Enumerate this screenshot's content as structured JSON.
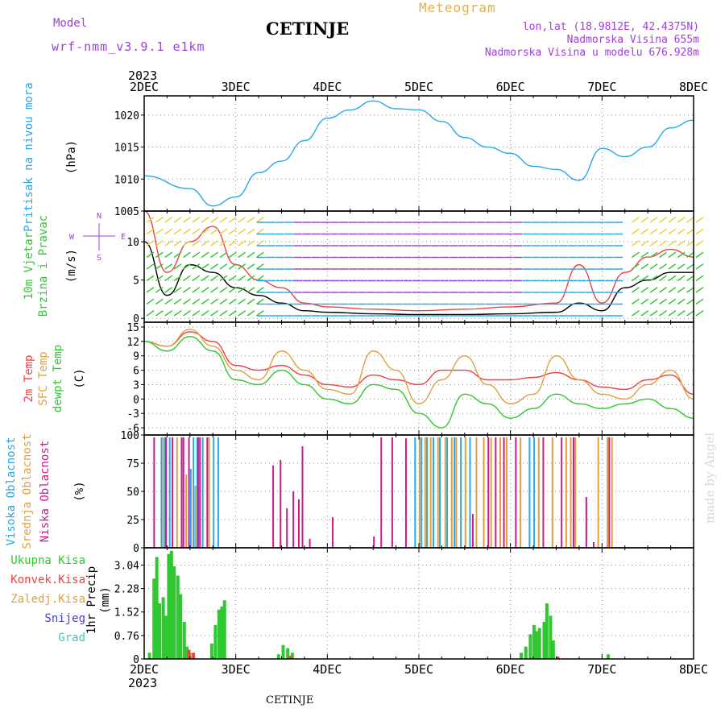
{
  "header": {
    "model_label": "Model",
    "model_name": "wrf-nmm_v3.9.1 e1km",
    "title": "CETINJE",
    "meteogram": "Meteogram",
    "lonlat": "lon,lat (18.9812E, 42.4375N)",
    "elevation": "Nadmorska Visina 655m",
    "model_elevation": "Nadmorska Visina u modelu 676.928m"
  },
  "footer": {
    "station": "CETINJE",
    "credit": "made by Angel"
  },
  "colors": {
    "purple": "#a040d8",
    "blue": "#28a8e8",
    "green": "#30c830",
    "red": "#f04040",
    "orange": "#e0a040",
    "tan": "#e0b050",
    "magenta": "#c81c8c",
    "navy": "#4040d8",
    "teal": "#40c8b8"
  },
  "chart_data": [
    {
      "type": "line",
      "panel": "pressure",
      "title_lines": [
        "Pritisak na nivou mora",
        "(hPa)"
      ],
      "x": [
        "2023-12-02 00",
        "2023-12-02 12",
        "2023-12-02 18",
        "2023-12-03 00",
        "2023-12-03 06",
        "2023-12-03 12",
        "2023-12-03 18",
        "2023-12-04 00",
        "2023-12-04 06",
        "2023-12-04 12",
        "2023-12-04 18",
        "2023-12-05 00",
        "2023-12-05 06",
        "2023-12-05 12",
        "2023-12-05 18",
        "2023-12-06 00",
        "2023-12-06 06",
        "2023-12-06 12",
        "2023-12-06 18",
        "2023-12-07 00",
        "2023-12-07 06",
        "2023-12-07 12",
        "2023-12-07 18",
        "2023-12-08 00"
      ],
      "series": [
        {
          "name": "Pritisak na nivou mora",
          "color": "#28a8e8",
          "values": [
            1010.5,
            1008.5,
            1005.8,
            1007.2,
            1011.0,
            1012.8,
            1016.0,
            1019.5,
            1020.8,
            1022.2,
            1021.0,
            1020.8,
            1019.0,
            1016.5,
            1015.0,
            1014.0,
            1012.0,
            1011.5,
            1009.8,
            1014.8,
            1013.5,
            1015.0,
            1018.0,
            1019.2
          ]
        }
      ],
      "ylim": [
        1005,
        1023
      ],
      "yticks": [
        1005,
        1010,
        1015,
        1020
      ]
    },
    {
      "type": "line",
      "panel": "wind",
      "title_lines": [
        "10m Vjetar",
        "Brzina i Pravac",
        "(m/s)"
      ],
      "compass": [
        "N",
        "E",
        "S",
        "W"
      ],
      "x": [
        "2023-12-02 00",
        "2023-12-02 06",
        "2023-12-02 12",
        "2023-12-02 18",
        "2023-12-03 00",
        "2023-12-03 06",
        "2023-12-03 12",
        "2023-12-03 18",
        "2023-12-04 00",
        "2023-12-04 12",
        "2023-12-05 00",
        "2023-12-05 12",
        "2023-12-06 00",
        "2023-12-06 12",
        "2023-12-06 18",
        "2023-12-07 00",
        "2023-12-07 06",
        "2023-12-07 12",
        "2023-12-07 18",
        "2023-12-08 00"
      ],
      "series": [
        {
          "name": "mean",
          "color": "#000000",
          "values": [
            10,
            3,
            7,
            6,
            4,
            3,
            2,
            1,
            0.8,
            0.6,
            0.5,
            0.5,
            0.6,
            0.8,
            2,
            1,
            4,
            5,
            6,
            6
          ]
        },
        {
          "name": "gust",
          "color": "#f04040",
          "values": [
            14,
            6,
            10,
            12,
            7,
            5,
            4,
            2,
            1.5,
            1.2,
            1.0,
            1.2,
            1.5,
            2,
            7,
            2,
            6,
            8,
            9,
            8
          ]
        }
      ],
      "ylim": [
        -0.5,
        14
      ],
      "yticks": [
        0,
        5,
        10
      ]
    },
    {
      "type": "line",
      "panel": "temperature",
      "title_lines": [
        "2m Temp",
        "SFC Temp",
        "dewpt Temp",
        "(C)"
      ],
      "x": [
        "2023-12-02 00",
        "2023-12-02 06",
        "2023-12-02 12",
        "2023-12-02 18",
        "2023-12-03 00",
        "2023-12-03 06",
        "2023-12-03 12",
        "2023-12-03 18",
        "2023-12-04 00",
        "2023-12-04 06",
        "2023-12-04 12",
        "2023-12-04 18",
        "2023-12-05 00",
        "2023-12-05 06",
        "2023-12-05 12",
        "2023-12-05 18",
        "2023-12-06 00",
        "2023-12-06 06",
        "2023-12-06 12",
        "2023-12-06 18",
        "2023-12-07 00",
        "2023-12-07 06",
        "2023-12-07 12",
        "2023-12-07 18",
        "2023-12-08 00"
      ],
      "series": [
        {
          "name": "2m Temp",
          "color": "#f04040",
          "values": [
            12,
            11,
            14,
            12,
            7,
            6,
            7,
            5,
            3,
            2.5,
            5,
            4,
            3,
            6,
            6,
            4,
            4,
            4.5,
            5.5,
            4,
            2.5,
            2,
            4,
            5,
            1
          ]
        },
        {
          "name": "SFC Temp",
          "color": "#e0a040",
          "values": [
            12,
            11,
            14.5,
            11,
            6,
            4,
            10,
            6,
            2,
            1,
            10,
            6,
            -1,
            4,
            9,
            3,
            -1,
            1,
            9,
            4,
            1,
            0,
            3,
            6,
            0
          ]
        },
        {
          "name": "dewpt Temp",
          "color": "#30c830",
          "values": [
            12,
            10,
            13,
            10,
            4,
            3,
            6,
            3,
            0,
            -1,
            3,
            2,
            -3,
            -6,
            1,
            -1,
            -4,
            -2,
            1,
            -1,
            -2,
            -1,
            0,
            -2,
            -4
          ]
        }
      ],
      "ylim": [
        -7.5,
        16
      ],
      "yticks": [
        -6,
        -3,
        0,
        3,
        6,
        9,
        12,
        15
      ]
    },
    {
      "type": "bar",
      "panel": "cloud",
      "title_lines": [
        "Visoka Oblacnost",
        "Srednja Oblacnost",
        "Niska Oblacnost",
        "(%)"
      ],
      "series": [
        {
          "name": "Visoka Oblacnost",
          "color": "#28a8e8",
          "x": [
            0.18,
            0.22,
            0.27,
            0.5,
            0.53,
            0.57,
            0.63,
            0.75,
            0.8,
            2.95,
            3.02,
            3.08,
            3.15,
            3.22,
            3.3,
            3.38,
            3.45,
            3.55,
            4.2,
            4.25
          ],
          "values": [
            98,
            98,
            98,
            70,
            98,
            98,
            98,
            98,
            98,
            98,
            98,
            98,
            98,
            98,
            98,
            98,
            98,
            98,
            98,
            98
          ]
        },
        {
          "name": "Srednja Oblacnost",
          "color": "#e0a040",
          "x": [
            0.2,
            0.35,
            0.45,
            0.55,
            0.7,
            3.0,
            3.06,
            3.12,
            3.2,
            3.28,
            3.35,
            3.4,
            3.5,
            3.62,
            3.7,
            3.78,
            3.88,
            3.95,
            4.1,
            4.3,
            4.45,
            4.6,
            4.65,
            4.7,
            4.95,
            5.05,
            5.1
          ],
          "values": [
            98,
            98,
            65,
            55,
            98,
            98,
            98,
            98,
            98,
            98,
            98,
            98,
            98,
            98,
            98,
            98,
            98,
            98,
            98,
            98,
            98,
            98,
            98,
            98,
            98,
            98,
            98
          ]
        },
        {
          "name": "Niska Oblacnost",
          "color": "#c81c8c",
          "x": [
            0.1,
            0.23,
            0.3,
            0.4,
            0.42,
            0.48,
            0.58,
            0.6,
            0.68,
            1.4,
            1.48,
            1.55,
            1.62,
            1.68,
            1.72,
            1.8,
            2.05,
            2.5,
            2.58,
            2.7,
            2.85,
            3.58,
            3.75,
            3.83,
            3.92,
            4.05,
            4.35,
            4.55,
            4.68,
            4.82,
            4.9,
            5.07
          ],
          "values": [
            98,
            98,
            98,
            98,
            98,
            98,
            98,
            98,
            98,
            73,
            78,
            35,
            50,
            43,
            90,
            8,
            27,
            10,
            98,
            98,
            97,
            30,
            98,
            98,
            98,
            98,
            98,
            98,
            98,
            45,
            5,
            98
          ]
        }
      ],
      "ylim": [
        0,
        100
      ],
      "yticks": [
        0,
        25,
        50,
        75,
        100
      ]
    },
    {
      "type": "bar",
      "panel": "precip",
      "title_lines": [
        "1hr Precip",
        "(mm)"
      ],
      "legend": [
        "Ukupna Kisa",
        "Konvek.Kisa",
        "Zaledj.Kisa",
        "Snijeg",
        "Grad"
      ],
      "series": [
        {
          "name": "Ukupna Kisa",
          "color": "#30c830",
          "x": [
            0.04,
            0.09,
            0.12,
            0.15,
            0.19,
            0.22,
            0.25,
            0.28,
            0.31,
            0.35,
            0.38,
            0.42,
            0.45,
            0.48,
            0.72,
            0.76,
            0.8,
            0.83,
            0.86,
            1.45,
            1.5,
            1.55,
            1.6,
            4.1,
            4.15,
            4.2,
            4.24,
            4.27,
            4.3,
            4.35,
            4.38,
            4.42,
            4.45,
            5.05
          ],
          "values": [
            0.2,
            2.6,
            3.3,
            1.8,
            2.0,
            1.4,
            3.4,
            3.5,
            3.0,
            2.7,
            2.1,
            1.2,
            0.4,
            0.2,
            0.5,
            1.1,
            1.6,
            1.7,
            1.9,
            0.15,
            0.45,
            0.35,
            0.2,
            0.2,
            0.4,
            0.8,
            1.1,
            0.9,
            1.0,
            1.2,
            1.8,
            1.4,
            0.6,
            0.15
          ]
        },
        {
          "name": "Konvek.Kisa",
          "color": "#f04040",
          "x": [
            0.47,
            0.52,
            1.58,
            4.5
          ],
          "values": [
            0.3,
            0.2,
            0.1,
            0.08
          ]
        }
      ],
      "ylim": [
        0,
        3.6
      ],
      "yticks": [
        0,
        0.76,
        1.52,
        2.28,
        3.04
      ]
    }
  ],
  "time_axis": {
    "year": "2023",
    "labels": [
      "2DEC",
      "3DEC",
      "4DEC",
      "5DEC",
      "6DEC",
      "7DEC",
      "8DEC"
    ]
  }
}
